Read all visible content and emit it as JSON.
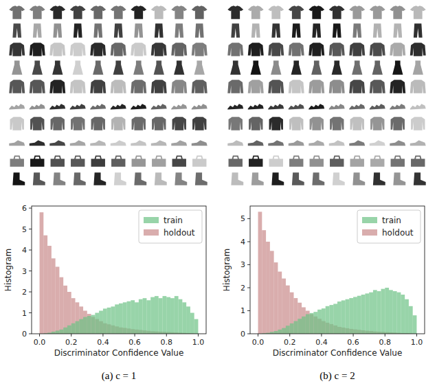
{
  "chart_data": [
    {
      "type": "histogram",
      "caption": "(a) c = 1",
      "x_label": "Discriminator Confidence Value",
      "y_label": "Histogram",
      "xlim": [
        -0.05,
        1.05
      ],
      "ylim": [
        0,
        6.1
      ],
      "xticks": [
        {
          "value": 0,
          "label": "0.0"
        },
        {
          "value": 0.2,
          "label": "0.2"
        },
        {
          "value": 0.4,
          "label": "0.4"
        },
        {
          "value": 0.6,
          "label": "0.6"
        },
        {
          "value": 0.8,
          "label": "0.8"
        },
        {
          "value": 1,
          "label": "1.0"
        }
      ],
      "yticks": [
        0,
        1,
        2,
        3,
        4,
        5,
        6
      ],
      "legend": "upper right",
      "bins": [
        0,
        0.025,
        0.05,
        0.075,
        0.1,
        0.125,
        0.15,
        0.175,
        0.2,
        0.225,
        0.25,
        0.275,
        0.3,
        0.325,
        0.35,
        0.375,
        0.4,
        0.425,
        0.45,
        0.475,
        0.5,
        0.525,
        0.55,
        0.575,
        0.6,
        0.625,
        0.65,
        0.675,
        0.7,
        0.725,
        0.75,
        0.775,
        0.8,
        0.825,
        0.85,
        0.875,
        0.9,
        0.925,
        0.95,
        0.975,
        1.0
      ],
      "series": [
        {
          "name": "train",
          "color": "#6cc285",
          "values": [
            0.0,
            0.02,
            0.05,
            0.1,
            0.15,
            0.2,
            0.3,
            0.4,
            0.5,
            0.6,
            0.7,
            0.8,
            0.85,
            0.9,
            1.0,
            1.1,
            1.2,
            1.25,
            1.3,
            1.4,
            1.45,
            1.5,
            1.55,
            1.6,
            1.5,
            1.65,
            1.7,
            1.6,
            1.75,
            1.8,
            1.7,
            1.8,
            1.75,
            1.7,
            1.8,
            1.65,
            1.5,
            1.3,
            1.0,
            0.7
          ]
        },
        {
          "name": "holdout",
          "color": "#c98a8a",
          "values": [
            5.8,
            4.7,
            4.2,
            3.6,
            3.2,
            2.7,
            2.3,
            2.0,
            1.7,
            1.5,
            1.3,
            1.1,
            0.95,
            0.8,
            0.7,
            0.6,
            0.5,
            0.45,
            0.4,
            0.35,
            0.3,
            0.28,
            0.25,
            0.22,
            0.2,
            0.18,
            0.16,
            0.14,
            0.12,
            0.11,
            0.1,
            0.09,
            0.08,
            0.07,
            0.06,
            0.05,
            0.04,
            0.03,
            0.02,
            0.01
          ]
        }
      ]
    },
    {
      "type": "histogram",
      "caption": "(b) c = 2",
      "x_label": "Discriminator Confidence Value",
      "y_label": "Histogram",
      "xlim": [
        -0.05,
        1.05
      ],
      "ylim": [
        0,
        5.55
      ],
      "xticks": [
        {
          "value": 0,
          "label": "0.0"
        },
        {
          "value": 0.2,
          "label": "0.2"
        },
        {
          "value": 0.4,
          "label": "0.4"
        },
        {
          "value": 0.6,
          "label": "0.6"
        },
        {
          "value": 0.8,
          "label": "0.8"
        },
        {
          "value": 1,
          "label": "1.0"
        }
      ],
      "yticks": [
        0,
        1,
        2,
        3,
        4,
        5
      ],
      "legend": "upper right",
      "bins": [
        0,
        0.025,
        0.05,
        0.075,
        0.1,
        0.125,
        0.15,
        0.175,
        0.2,
        0.225,
        0.25,
        0.275,
        0.3,
        0.325,
        0.35,
        0.375,
        0.4,
        0.425,
        0.45,
        0.475,
        0.5,
        0.525,
        0.55,
        0.575,
        0.6,
        0.625,
        0.65,
        0.675,
        0.7,
        0.725,
        0.75,
        0.775,
        0.8,
        0.825,
        0.85,
        0.875,
        0.9,
        0.925,
        0.95,
        0.975,
        1.0
      ],
      "series": [
        {
          "name": "train",
          "color": "#6cc285",
          "values": [
            0.0,
            0.02,
            0.04,
            0.08,
            0.12,
            0.18,
            0.25,
            0.35,
            0.45,
            0.55,
            0.65,
            0.75,
            0.85,
            0.9,
            0.95,
            1.05,
            1.1,
            1.2,
            1.25,
            1.3,
            1.4,
            1.45,
            1.5,
            1.55,
            1.6,
            1.65,
            1.7,
            1.75,
            1.8,
            1.9,
            1.85,
            1.95,
            2.0,
            1.9,
            1.85,
            1.8,
            1.7,
            1.5,
            1.2,
            0.8
          ]
        },
        {
          "name": "holdout",
          "color": "#c98a8a",
          "values": [
            5.3,
            4.5,
            4.0,
            3.6,
            3.1,
            2.7,
            2.4,
            2.1,
            1.8,
            1.55,
            1.35,
            1.15,
            1.0,
            0.85,
            0.75,
            0.65,
            0.55,
            0.48,
            0.42,
            0.36,
            0.3,
            0.27,
            0.24,
            0.21,
            0.19,
            0.17,
            0.15,
            0.13,
            0.12,
            0.1,
            0.09,
            0.08,
            0.07,
            0.06,
            0.05,
            0.04,
            0.03,
            0.03,
            0.02,
            0.01
          ]
        }
      ]
    }
  ]
}
